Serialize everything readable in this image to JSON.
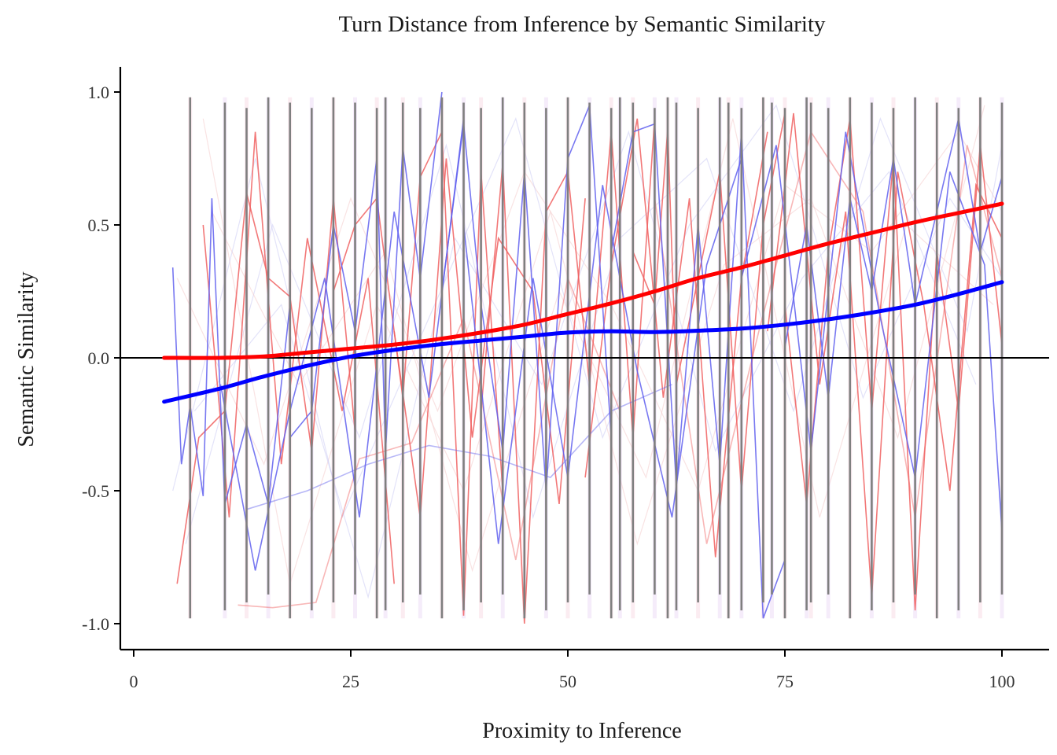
{
  "chart_data": {
    "type": "line",
    "title": "Turn Distance from Inference by Semantic Similarity",
    "xlabel": "Proximity to Inference",
    "ylabel": "Semantic Similarity",
    "xlim": [
      -3,
      103
    ],
    "ylim": [
      -1.1,
      1.1
    ],
    "xticks": [
      0,
      25,
      50,
      75,
      100
    ],
    "xtick_labels": [
      "0",
      "25",
      "50",
      "75",
      "100"
    ],
    "yticks": [
      -1.0,
      -0.5,
      0.0,
      0.5,
      1.0
    ],
    "ytick_labels": [
      "-1.0",
      "-0.5",
      "0.0",
      "0.5",
      "1.0"
    ],
    "reference_line_y": 0,
    "grid": false,
    "legend": "none",
    "colors": {
      "red_series": "#ff0000",
      "blue_series": "#0000ff",
      "red_raw": "#f06060",
      "blue_raw": "#6060ee",
      "vertical_rules": "#7f7f7f",
      "zero_line": "#000000"
    },
    "series": [
      {
        "color": "#ff0000",
        "x": [
          3.5,
          10,
          15,
          20,
          25,
          30,
          35,
          40,
          45,
          50,
          55,
          60,
          65,
          70,
          75,
          80,
          85,
          90,
          95,
          100
        ],
        "y": [
          0.0,
          0.0,
          0.005,
          0.02,
          0.035,
          0.05,
          0.07,
          0.095,
          0.125,
          0.165,
          0.205,
          0.25,
          0.3,
          0.34,
          0.385,
          0.43,
          0.47,
          0.51,
          0.545,
          0.58
        ]
      },
      {
        "color": "#0000ff",
        "x": [
          3.5,
          10,
          15,
          20,
          25,
          30,
          35,
          40,
          45,
          50,
          55,
          60,
          65,
          70,
          75,
          80,
          85,
          90,
          95,
          100
        ],
        "y": [
          -0.165,
          -0.115,
          -0.07,
          -0.03,
          0.005,
          0.03,
          0.05,
          0.065,
          0.08,
          0.095,
          0.1,
          0.097,
          0.102,
          0.11,
          0.125,
          0.145,
          0.17,
          0.2,
          0.24,
          0.285
        ]
      }
    ],
    "vertical_rules_x": [
      6.5,
      10.5,
      13,
      15.5,
      18,
      20.5,
      23,
      25.5,
      28,
      29,
      31,
      33,
      35.5,
      38,
      40,
      42.5,
      45,
      47.5,
      50,
      52.5,
      55,
      56,
      57.5,
      60,
      61.5,
      62.5,
      65,
      67.5,
      68.5,
      70,
      72.5,
      73.5,
      75,
      77.5,
      78,
      80,
      82.5,
      85,
      87.5,
      90,
      92.5,
      95,
      97.5,
      100
    ],
    "raw_red": [
      {
        "x": [
          5,
          7.5,
          10.5,
          13,
          15.5,
          18,
          20.5,
          23,
          25.5
        ],
        "y": [
          -0.85,
          -0.3,
          -0.2,
          0.62,
          0.3,
          0.23,
          -0.35,
          0.6,
          -0.28
        ]
      },
      {
        "x": [
          23,
          25.5,
          28,
          31,
          33,
          35.5,
          38,
          40,
          42.5
        ],
        "y": [
          0.25,
          0.5,
          0.6,
          -0.15,
          0.68,
          0.85,
          -0.97,
          0.7,
          -0.5
        ]
      },
      {
        "x": [
          40,
          42.5,
          45,
          47.5,
          50,
          52.5,
          55,
          57.5,
          60
        ],
        "y": [
          -0.2,
          0.73,
          -1.0,
          0.55,
          0.7,
          -0.1,
          0.85,
          -0.3,
          0.9
        ]
      },
      {
        "x": [
          57.5,
          60,
          61.5,
          62.5,
          65,
          67.5,
          70,
          72.5,
          75
        ],
        "y": [
          0.4,
          0.2,
          0.86,
          -0.1,
          0.3,
          0.7,
          -0.5,
          0.5,
          0.92
        ]
      },
      {
        "x": [
          75,
          77.5,
          80,
          82.5,
          85,
          87.5,
          90,
          92.5,
          95,
          97.5,
          100
        ],
        "y": [
          0.2,
          -0.55,
          0.4,
          0.9,
          -0.2,
          0.75,
          -0.95,
          0.4,
          -0.2,
          0.8,
          0.05
        ]
      },
      {
        "x": [
          8,
          11,
          14,
          17,
          20,
          24,
          27,
          30
        ],
        "y": [
          0.5,
          -0.6,
          0.85,
          -0.4,
          0.45,
          -0.2,
          0.3,
          -0.85
        ]
      },
      {
        "x": [
          30,
          33,
          36,
          39,
          42,
          46,
          49,
          52
        ],
        "y": [
          0.1,
          -0.6,
          0.75,
          -0.3,
          0.45,
          0.25,
          -0.55,
          0.6
        ]
      },
      {
        "x": [
          52,
          55,
          58,
          61,
          64,
          67,
          70,
          73
        ],
        "y": [
          -0.45,
          0.35,
          0.9,
          -0.15,
          0.6,
          -0.75,
          0.3,
          0.85
        ]
      },
      {
        "x": [
          73,
          76,
          79,
          82,
          85,
          88,
          91,
          94,
          97,
          100
        ],
        "y": [
          0.1,
          0.92,
          -0.1,
          0.55,
          -0.9,
          0.7,
          0.2,
          -0.5,
          0.65,
          0.45
        ]
      },
      {
        "x": [
          12,
          16,
          21,
          26,
          32,
          38,
          44,
          50,
          56
        ],
        "y": [
          -0.93,
          -0.94,
          -0.92,
          -0.38,
          -0.32,
          0.15,
          -0.76,
          0.3,
          -0.2
        ]
      },
      {
        "x": [
          60,
          66,
          72,
          78,
          84,
          90,
          96,
          100
        ],
        "y": [
          0.6,
          -0.7,
          0.1,
          0.85,
          0.55,
          -0.6,
          0.8,
          0.3
        ]
      }
    ],
    "raw_blue": [
      {
        "x": [
          4.5,
          5.5,
          6.5,
          8,
          9,
          10.5,
          13,
          15.5,
          18
        ],
        "y": [
          0.34,
          -0.4,
          -0.18,
          -0.52,
          0.6,
          -0.55,
          -0.25,
          -0.55,
          0.2
        ]
      },
      {
        "x": [
          18,
          20.5,
          23,
          25.5,
          28,
          29,
          31,
          33,
          35.5
        ],
        "y": [
          -0.3,
          -0.2,
          0.5,
          0.1,
          0.75,
          -0.35,
          0.79,
          0.3,
          1.0
        ]
      },
      {
        "x": [
          35.5,
          38,
          40,
          42.5,
          45,
          47.5,
          50,
          52.5,
          55
        ],
        "y": [
          0.25,
          0.88,
          0.2,
          -0.35,
          0.7,
          -0.5,
          0.75,
          0.95,
          -0.3
        ]
      },
      {
        "x": [
          55,
          57.5,
          60,
          62.5,
          65,
          67.5,
          70,
          72.5,
          75
        ],
        "y": [
          0.4,
          0.85,
          0.88,
          -0.48,
          0.5,
          -0.4,
          0.85,
          -0.98,
          -0.76
        ]
      },
      {
        "x": [
          75,
          77.5,
          80,
          82.5,
          85,
          87.5,
          90,
          92.5,
          95,
          97.5,
          100
        ],
        "y": [
          0.04,
          0.5,
          -0.15,
          0.6,
          0.25,
          0.75,
          0.2,
          0.55,
          0.9,
          0.4,
          0.68
        ]
      },
      {
        "x": [
          10,
          14,
          18,
          22,
          26,
          30,
          34,
          38
        ],
        "y": [
          -0.1,
          -0.8,
          -0.2,
          0.3,
          -0.6,
          0.55,
          -0.15,
          0.9
        ]
      },
      {
        "x": [
          38,
          42,
          46,
          50,
          54,
          58,
          62,
          66,
          70
        ],
        "y": [
          0.5,
          -0.7,
          0.3,
          -0.45,
          0.65,
          -0.05,
          -0.6,
          0.35,
          0.75
        ]
      },
      {
        "x": [
          70,
          74,
          78,
          82,
          86,
          90,
          94,
          98,
          100
        ],
        "y": [
          0.3,
          0.8,
          -0.35,
          0.85,
          0.15,
          -0.45,
          0.7,
          0.35,
          -0.65
        ]
      },
      {
        "x": [
          13,
          20,
          27,
          34,
          41,
          48,
          55,
          62
        ],
        "y": [
          -0.57,
          -0.5,
          -0.4,
          -0.33,
          -0.37,
          -0.45,
          -0.2,
          -0.1
        ]
      }
    ],
    "raw_faint": [
      {
        "x": [
          5,
          15,
          25,
          35,
          45,
          55,
          65,
          75,
          85,
          95,
          100
        ],
        "y": [
          0.3,
          -0.4,
          0.6,
          -0.2,
          0.7,
          0.2,
          -0.5,
          0.65,
          0.4,
          0.85,
          0.55
        ]
      },
      {
        "x": [
          6,
          16,
          26,
          36,
          46,
          56,
          66,
          76,
          86,
          96,
          100
        ],
        "y": [
          -0.7,
          0.5,
          -0.3,
          0.8,
          -0.6,
          0.45,
          0.75,
          -0.2,
          0.9,
          0.1,
          0.8
        ]
      },
      {
        "x": [
          8,
          18,
          28,
          38,
          48,
          58,
          68,
          78,
          88,
          98
        ],
        "y": [
          0.9,
          -0.85,
          0.2,
          -0.5,
          0.55,
          -0.7,
          0.35,
          0.6,
          -0.3,
          0.95
        ]
      },
      {
        "x": [
          7,
          17,
          27,
          37,
          47,
          57,
          67,
          77,
          87,
          97
        ],
        "y": [
          -0.2,
          0.2,
          -0.9,
          0.45,
          -0.1,
          0.85,
          -0.35,
          0.3,
          0.7,
          -0.1
        ]
      },
      {
        "x": [
          9,
          19,
          29,
          39,
          49,
          59,
          69,
          79,
          89,
          99
        ],
        "y": [
          0.55,
          -0.1,
          0.4,
          -0.8,
          0.25,
          -0.45,
          0.9,
          -0.6,
          0.5,
          0.2
        ]
      },
      {
        "x": [
          4.5,
          14,
          24,
          34,
          44,
          54,
          64,
          74,
          84,
          94,
          100
        ],
        "y": [
          -0.5,
          0.75,
          -0.6,
          0.15,
          0.9,
          -0.3,
          0.5,
          0.95,
          -0.15,
          0.6,
          0.3
        ]
      }
    ]
  }
}
